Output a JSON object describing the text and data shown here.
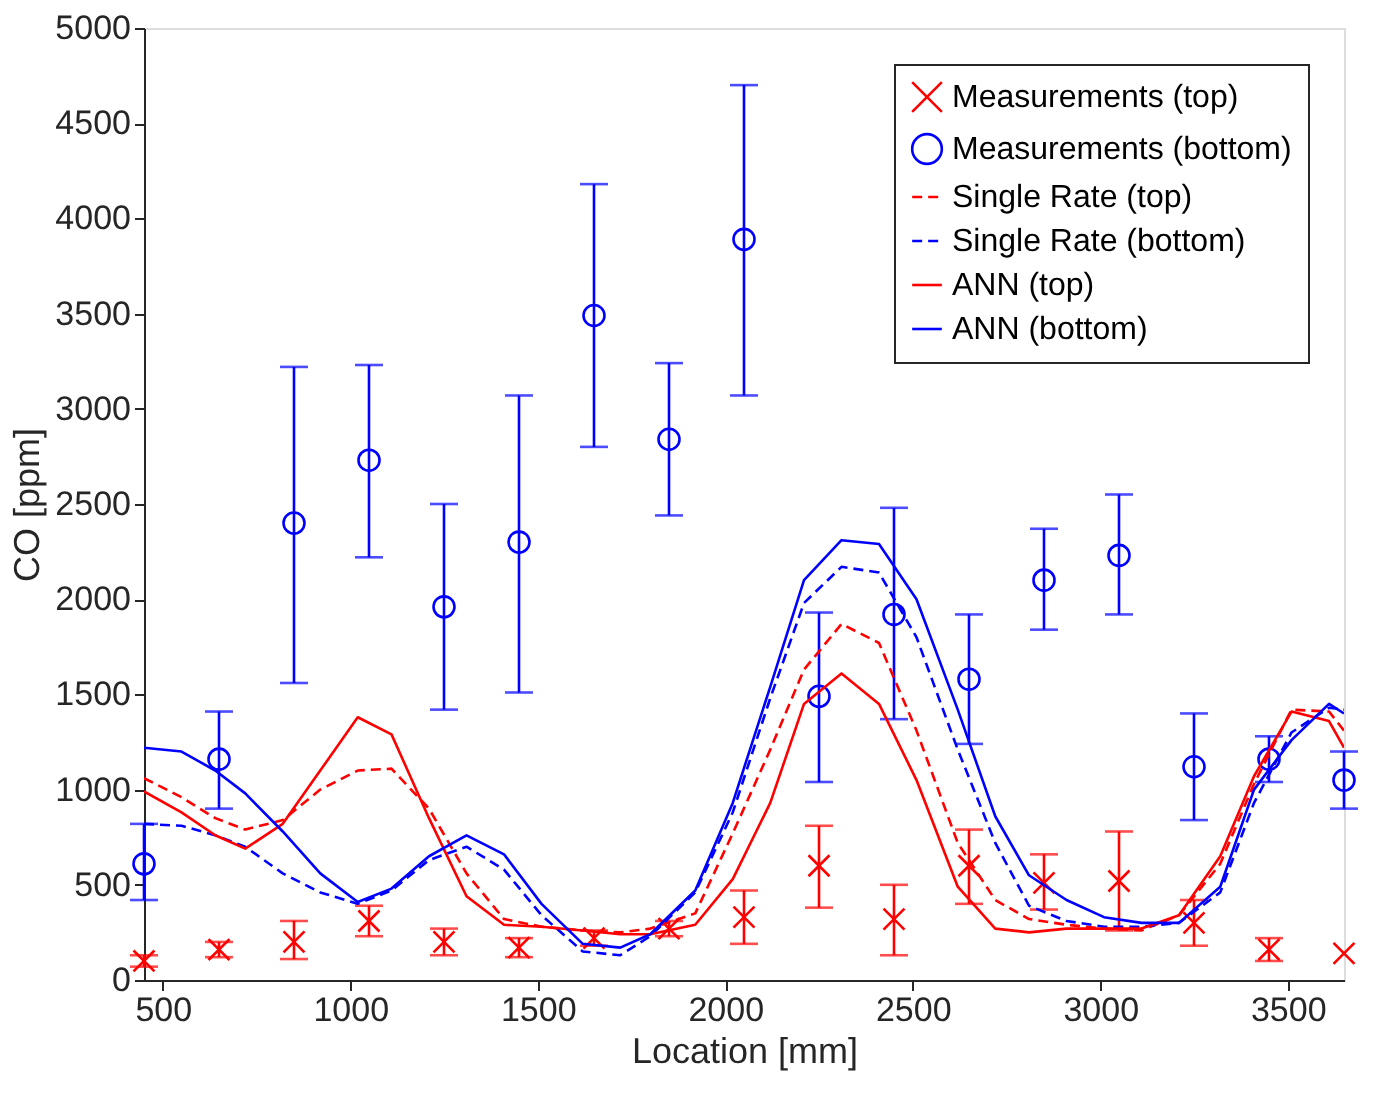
{
  "chart_data": {
    "type": "line",
    "xlabel": "Location [mm]",
    "ylabel": "CO [ppm]",
    "xlim": [
      450,
      3650
    ],
    "ylim": [
      0,
      5000
    ],
    "xticks": [
      500,
      1000,
      1500,
      2000,
      2500,
      3000,
      3500
    ],
    "yticks": [
      0,
      500,
      1000,
      1500,
      2000,
      2500,
      3000,
      3500,
      4000,
      4500,
      5000
    ],
    "grid": false,
    "legend": "top right",
    "series": [
      {
        "name": "Measurements (top)",
        "type": "scatter",
        "marker": "cross",
        "color": "#ff0000",
        "x": [
          450,
          650,
          850,
          1050,
          1250,
          1450,
          1650,
          1850,
          2050,
          2250,
          2450,
          2650,
          2850,
          3050,
          3250,
          3450,
          3650
        ],
        "values": [
          100,
          160,
          200,
          310,
          200,
          170,
          220,
          270,
          330,
          600,
          320,
          600,
          510,
          520,
          300,
          160,
          140
        ],
        "errors": [
          [
            70,
            130
          ],
          [
            120,
            200
          ],
          [
            110,
            310
          ],
          [
            230,
            390
          ],
          [
            130,
            270
          ],
          [
            120,
            220
          ],
          [
            180,
            260
          ],
          [
            230,
            310
          ],
          [
            190,
            470
          ],
          [
            380,
            810
          ],
          [
            130,
            500
          ],
          [
            400,
            790
          ],
          [
            370,
            660
          ],
          [
            260,
            780
          ],
          [
            180,
            420
          ],
          [
            100,
            220
          ],
          null
        ]
      },
      {
        "name": " Measurements (bottom)",
        "type": "scatter",
        "marker": "circle",
        "color": "#0000ff",
        "x": [
          450,
          650,
          850,
          1050,
          1250,
          1450,
          1650,
          1850,
          2050,
          2250,
          2450,
          2650,
          2850,
          3050,
          3250,
          3450,
          3650
        ],
        "values": [
          610,
          1160,
          2400,
          2730,
          1960,
          2300,
          3490,
          2840,
          3890,
          1490,
          1920,
          1580,
          2100,
          2230,
          1120,
          1160,
          1050
        ],
        "errors": [
          [
            420,
            820
          ],
          [
            900,
            1410
          ],
          [
            1560,
            3220
          ],
          [
            2220,
            3230
          ],
          [
            1420,
            2500
          ],
          [
            1510,
            3070
          ],
          [
            2800,
            4180
          ],
          [
            2440,
            3240
          ],
          [
            3070,
            4700
          ],
          [
            1040,
            1930
          ],
          [
            1370,
            2480
          ],
          [
            1240,
            1920
          ],
          [
            1840,
            2370
          ],
          [
            1920,
            2550
          ],
          [
            840,
            1400
          ],
          [
            1040,
            1280
          ],
          [
            900,
            1200
          ]
        ]
      },
      {
        "name": "Single Rate (top)",
        "line_style": "dashed",
        "color": "#ff0000",
        "x": [
          450,
          550,
          640,
          720,
          820,
          920,
          1020,
          1110,
          1210,
          1310,
          1410,
          1510,
          1620,
          1720,
          1800,
          1920,
          2020,
          2120,
          2210,
          2310,
          2410,
          2510,
          2620,
          2720,
          2810,
          2910,
          3010,
          3110,
          3210,
          3320,
          3410,
          3510,
          3610,
          3650
        ],
        "values": [
          1060,
          960,
          850,
          790,
          840,
          1000,
          1100,
          1110,
          900,
          560,
          320,
          280,
          260,
          250,
          270,
          350,
          770,
          1210,
          1630,
          1870,
          1770,
          1310,
          720,
          420,
          320,
          290,
          270,
          260,
          340,
          610,
          1030,
          1420,
          1410,
          1310
        ]
      },
      {
        "name": "Single Rate (bottom)",
        "line_style": "dashed",
        "color": "#0000ff",
        "x": [
          450,
          550,
          640,
          720,
          820,
          920,
          1020,
          1110,
          1210,
          1310,
          1410,
          1510,
          1620,
          1720,
          1800,
          1920,
          2020,
          2120,
          2210,
          2310,
          2410,
          2510,
          2620,
          2720,
          2810,
          2910,
          3010,
          3110,
          3210,
          3320,
          3410,
          3510,
          3610,
          3650
        ],
        "values": [
          820,
          810,
          760,
          700,
          560,
          460,
          400,
          470,
          630,
          700,
          580,
          340,
          150,
          130,
          230,
          460,
          880,
          1480,
          1980,
          2170,
          2140,
          1800,
          1210,
          720,
          390,
          310,
          280,
          280,
          300,
          460,
          930,
          1300,
          1430,
          1420
        ]
      },
      {
        "name": "ANN (top)",
        "line_style": "solid",
        "color": "#ff0000",
        "x": [
          450,
          550,
          640,
          720,
          820,
          920,
          1020,
          1110,
          1210,
          1310,
          1410,
          1510,
          1620,
          1720,
          1800,
          1920,
          2020,
          2120,
          2210,
          2310,
          2410,
          2510,
          2620,
          2720,
          2810,
          2910,
          3010,
          3110,
          3210,
          3320,
          3410,
          3510,
          3610,
          3650
        ],
        "values": [
          990,
          880,
          760,
          690,
          820,
          1100,
          1380,
          1290,
          850,
          440,
          290,
          280,
          260,
          240,
          240,
          290,
          530,
          930,
          1450,
          1610,
          1450,
          1050,
          490,
          270,
          250,
          270,
          270,
          270,
          340,
          650,
          1070,
          1410,
          1360,
          1220
        ]
      },
      {
        "name": "ANN (bottom)",
        "line_style": "solid",
        "color": "#0000ff",
        "x": [
          450,
          550,
          640,
          720,
          820,
          920,
          1020,
          1110,
          1210,
          1310,
          1410,
          1510,
          1620,
          1720,
          1800,
          1920,
          2020,
          2120,
          2210,
          2310,
          2410,
          2510,
          2620,
          2720,
          2810,
          2910,
          3010,
          3110,
          3210,
          3320,
          3410,
          3510,
          3610,
          3650
        ],
        "values": [
          1220,
          1200,
          1100,
          980,
          780,
          560,
          410,
          480,
          650,
          760,
          660,
          400,
          190,
          170,
          240,
          470,
          930,
          1540,
          2100,
          2310,
          2290,
          2000,
          1420,
          860,
          550,
          420,
          330,
          300,
          300,
          490,
          1000,
          1260,
          1450,
          1400
        ]
      }
    ]
  }
}
